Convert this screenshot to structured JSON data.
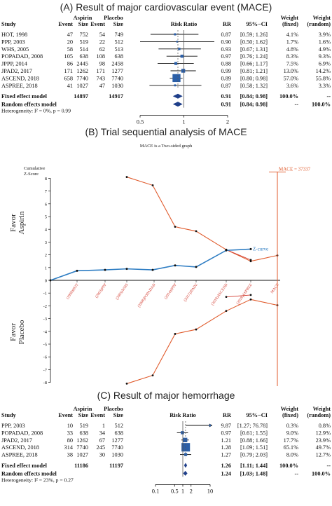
{
  "panels": {
    "a_title": "(A) Result of major cardiovascular event (MACE)",
    "b_title": "(B) Trial sequential analysis of MACE",
    "c_title": "(C) Result of major hemorrhage"
  },
  "forest_headers": {
    "study": "Study",
    "aspirin": "Aspirin",
    "placebo": "Placebo",
    "event": "Event",
    "size": "Size",
    "risk_ratio": "Risk Ratio",
    "rr": "RR",
    "ci": "95%−CI",
    "weight": "Weight",
    "weight2": "Weight",
    "fixed": "(fixed)",
    "random": "(random)"
  },
  "chart_data": [
    {
      "type": "forest",
      "title": "(A) Result of major cardiovascular event (MACE)",
      "axis_ticks": [
        "0.5",
        "1",
        "2"
      ],
      "studies": [
        {
          "study": "HOT, 1998",
          "a_event": "47",
          "a_size": "752",
          "p_event": "54",
          "p_size": "749",
          "rr": 0.87,
          "lo": 0.59,
          "hi": 1.26,
          "ci": "[0.59; 1.26]",
          "wf": "4.1%",
          "wr": "3.9%"
        },
        {
          "study": "PPP, 2003",
          "a_event": "20",
          "a_size": "519",
          "p_event": "22",
          "p_size": "512",
          "rr": 0.9,
          "lo": 0.5,
          "hi": 1.62,
          "ci": "[0.50; 1.62]",
          "wf": "1.7%",
          "wr": "1.6%"
        },
        {
          "study": "WHS, 2005",
          "a_event": "58",
          "a_size": "514",
          "p_event": "62",
          "p_size": "513",
          "rr": 0.93,
          "lo": 0.67,
          "hi": 1.31,
          "ci": "[0.67; 1.31]",
          "wf": "4.8%",
          "wr": "4.9%"
        },
        {
          "study": "POPADAD, 2008",
          "a_event": "105",
          "a_size": "638",
          "p_event": "108",
          "p_size": "638",
          "rr": 0.97,
          "lo": 0.76,
          "hi": 1.24,
          "ci": "[0.76; 1.24]",
          "wf": "8.3%",
          "wr": "9.3%"
        },
        {
          "study": "JPPP, 2014",
          "a_event": "86",
          "a_size": "2445",
          "p_event": "98",
          "p_size": "2458",
          "rr": 0.88,
          "lo": 0.66,
          "hi": 1.17,
          "ci": "[0.66; 1.17]",
          "wf": "7.5%",
          "wr": "6.9%"
        },
        {
          "study": "JPAD2, 2017",
          "a_event": "171",
          "a_size": "1262",
          "p_event": "171",
          "p_size": "1277",
          "rr": 0.99,
          "lo": 0.81,
          "hi": 1.21,
          "ci": "[0.81; 1.21]",
          "wf": "13.0%",
          "wr": "14.2%"
        },
        {
          "study": "ASCEND, 2018",
          "a_event": "658",
          "a_size": "7740",
          "p_event": "743",
          "p_size": "7740",
          "rr": 0.89,
          "lo": 0.8,
          "hi": 0.98,
          "ci": "[0.80; 0.98]",
          "wf": "57.0%",
          "wr": "55.8%"
        },
        {
          "study": "ASPREE, 2018",
          "a_event": "41",
          "a_size": "1027",
          "p_event": "47",
          "p_size": "1030",
          "rr": 0.87,
          "lo": 0.58,
          "hi": 1.32,
          "ci": "[0.58; 1.32]",
          "wf": "3.6%",
          "wr": "3.3%"
        }
      ],
      "fixed": {
        "label": "Fixed effect model",
        "a_size": "14897",
        "p_size": "14917",
        "rr": 0.91,
        "lo": 0.84,
        "hi": 0.98,
        "rr_text": "0.91",
        "ci": "[0.84; 0.98]",
        "wf": "100.0%",
        "wr": "--"
      },
      "random": {
        "label": "Random effects model",
        "rr": 0.91,
        "lo": 0.84,
        "hi": 0.98,
        "rr_text": "0.91",
        "ci": "[0.84; 0.98]",
        "wf": "--",
        "wr": "100.0%"
      },
      "heterogeneity": "Heterogeneity: I² = 0%, p = 0.99"
    },
    {
      "type": "line",
      "title": "(B) Trial sequential analysis of MACE",
      "subtitle": "MACE is a Two-sided graph",
      "ylabel": "Cumulative Z-Score",
      "ylabel_line1": "Cumulative",
      "ylabel_line2": "Z-Score",
      "favor_top": [
        "Favor",
        "Aspirin"
      ],
      "favor_bottom": [
        "Favor",
        "Placebo"
      ],
      "ylim": [
        -8,
        8
      ],
      "y_ticks": [
        8,
        7,
        6,
        5,
        4,
        3,
        2,
        1,
        0,
        -1,
        -2,
        -3,
        -4,
        -5,
        -6,
        -7,
        -8
      ],
      "x_labels": [
        "(1998)HOT",
        "(2003)PPP",
        "(2005)WHS",
        "(2008)POPADAD",
        "(2014)JPPP",
        "(2017)JPAD2",
        "(2018)ASCEND",
        "(2018)ASPREE",
        "MACE"
      ],
      "ris_label": "MACE = 37337",
      "zcurve_label": "Z-curve",
      "zcurve": [
        0,
        0.75,
        0.82,
        0.9,
        0.82,
        1.17,
        1.05,
        2.35,
        2.45
      ],
      "upper_boundary": [
        8.1,
        7.45,
        4.2,
        3.85,
        2.4,
        1.5,
        1.95
      ],
      "lower_boundary": [
        -8.1,
        -7.45,
        -4.2,
        -3.85,
        -2.4,
        -1.5,
        -1.95
      ],
      "futility_upper": [
        2.4,
        1.6
      ],
      "futility_lower": [
        -1.3,
        -1.15
      ],
      "colors": {
        "zcurve": "#2e7dc3",
        "boundary": "#e05a2b",
        "futility": "#d23a2e"
      }
    },
    {
      "type": "forest",
      "title": "(C) Result of major hemorrhage",
      "axis_ticks": [
        "0.1",
        "0.5",
        "1",
        "2",
        "10"
      ],
      "studies": [
        {
          "study": "PPP, 2003",
          "a_event": "10",
          "a_size": "519",
          "p_event": "1",
          "p_size": "512",
          "rr": 9.87,
          "lo": 1.27,
          "hi": 76.78,
          "ci": "[1.27; 76.78]",
          "wf": "0.3%",
          "wr": "0.8%"
        },
        {
          "study": "POPADAD, 2008",
          "a_event": "33",
          "a_size": "638",
          "p_event": "34",
          "p_size": "638",
          "rr": 0.97,
          "lo": 0.61,
          "hi": 1.55,
          "ci": "[0.61; 1.55]",
          "wf": "9.0%",
          "wr": "12.9%"
        },
        {
          "study": "JPAD2, 2017",
          "a_event": "80",
          "a_size": "1262",
          "p_event": "67",
          "p_size": "1277",
          "rr": 1.21,
          "lo": 0.88,
          "hi": 1.66,
          "ci": "[0.88; 1.66]",
          "wf": "17.7%",
          "wr": "23.9%"
        },
        {
          "study": "ASCEND, 2018",
          "a_event": "314",
          "a_size": "7740",
          "p_event": "245",
          "p_size": "7740",
          "rr": 1.28,
          "lo": 1.09,
          "hi": 1.51,
          "ci": "[1.09; 1.51]",
          "wf": "65.1%",
          "wr": "49.7%"
        },
        {
          "study": "ASPREE, 2018",
          "a_event": "38",
          "a_size": "1027",
          "p_event": "30",
          "p_size": "1030",
          "rr": 1.27,
          "lo": 0.79,
          "hi": 2.03,
          "ci": "[0.79; 2.03]",
          "wf": "8.0%",
          "wr": "12.7%"
        }
      ],
      "fixed": {
        "label": "Fixed effect model",
        "a_size": "11186",
        "p_size": "11197",
        "rr": 1.26,
        "lo": 1.11,
        "hi": 1.44,
        "rr_text": "1.26",
        "ci": "[1.11; 1.44]",
        "wf": "100.0%",
        "wr": "--"
      },
      "random": {
        "label": "Random effects model",
        "rr": 1.24,
        "lo": 1.03,
        "hi": 1.48,
        "rr_text": "1.24",
        "ci": "[1.03; 1.48]",
        "wf": "--",
        "wr": "100.0%"
      },
      "heterogeneity": "Heterogeneity: I² = 23%, p = 0.27"
    }
  ]
}
